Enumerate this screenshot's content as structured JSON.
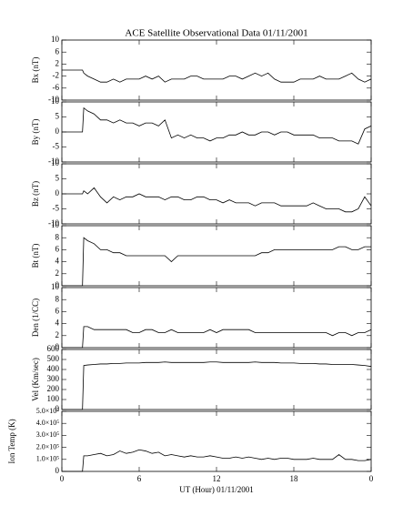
{
  "chart_data": [
    {
      "type": "line",
      "title": "ACE Satellite Observational Data   01/11/2001",
      "ylabel": "Bx (nT)",
      "color": "#000000",
      "x": [
        0,
        1.6,
        1.7,
        2,
        2.5,
        3,
        3.5,
        4,
        4.5,
        5,
        5.5,
        6,
        6.5,
        7,
        7.5,
        8,
        8.5,
        9,
        9.5,
        10,
        10.5,
        11,
        11.5,
        12,
        12.5,
        13,
        13.5,
        14,
        14.5,
        15,
        15.5,
        16,
        16.5,
        17,
        17.5,
        18,
        18.5,
        19,
        19.5,
        20,
        20.5,
        21,
        21.5,
        22,
        22.5,
        23,
        23.5,
        24
      ],
      "values": [
        0,
        0,
        -1,
        -2,
        -3,
        -4,
        -4,
        -3,
        -4,
        -3,
        -3,
        -3,
        -2,
        -3,
        -2,
        -4,
        -3,
        -3,
        -3,
        -2,
        -2,
        -3,
        -3,
        -3,
        -3,
        -2,
        -2,
        -3,
        -2,
        -1,
        -2,
        -1,
        -3,
        -4,
        -4,
        -4,
        -3,
        -3,
        -3,
        -2,
        -3,
        -3,
        -3,
        -2,
        -1,
        -3,
        -4,
        -3
      ],
      "xlim": [
        0,
        24
      ],
      "xticks": [
        0,
        6,
        12,
        18,
        {
          "value": 24,
          "label": "0"
        }
      ],
      "ylim": [
        -10,
        10
      ],
      "yticks": [
        -10,
        -6,
        -2,
        2,
        6,
        10
      ]
    },
    {
      "type": "line",
      "ylabel": "By (nT)",
      "color": "#000000",
      "x": [
        0,
        1.6,
        1.7,
        2,
        2.5,
        3,
        3.5,
        4,
        4.5,
        5,
        5.5,
        6,
        6.5,
        7,
        7.5,
        8,
        8.5,
        9,
        9.5,
        10,
        10.5,
        11,
        11.5,
        12,
        12.5,
        13,
        13.5,
        14,
        14.5,
        15,
        15.5,
        16,
        16.5,
        17,
        17.5,
        18,
        18.5,
        19,
        19.5,
        20,
        20.5,
        21,
        21.5,
        22,
        22.5,
        23,
        23.5,
        24
      ],
      "values": [
        0,
        0,
        8,
        7,
        6,
        4,
        4,
        3,
        4,
        3,
        3,
        2,
        3,
        3,
        2,
        4,
        -2,
        -1,
        -2,
        -1,
        -2,
        -2,
        -3,
        -2,
        -2,
        -1,
        -1,
        0,
        -1,
        -1,
        0,
        0,
        -1,
        0,
        0,
        -1,
        -1,
        -1,
        -1,
        -2,
        -2,
        -2,
        -3,
        -3,
        -3,
        -4,
        1,
        2
      ],
      "xlim": [
        0,
        24
      ],
      "xticks": [
        0,
        6,
        12,
        18,
        {
          "value": 24,
          "label": "0"
        }
      ],
      "ylim": [
        -10,
        10
      ],
      "yticks": [
        -10,
        -5,
        0,
        5,
        10
      ]
    },
    {
      "type": "line",
      "ylabel": "Bz (nT)",
      "color": "#000000",
      "x": [
        0,
        1.6,
        1.7,
        2,
        2.5,
        3,
        3.5,
        4,
        4.5,
        5,
        5.5,
        6,
        6.5,
        7,
        7.5,
        8,
        8.5,
        9,
        9.5,
        10,
        10.5,
        11,
        11.5,
        12,
        12.5,
        13,
        13.5,
        14,
        14.5,
        15,
        15.5,
        16,
        16.5,
        17,
        17.5,
        18,
        18.5,
        19,
        19.5,
        20,
        20.5,
        21,
        21.5,
        22,
        22.5,
        23,
        23.5,
        24
      ],
      "values": [
        0,
        0,
        1,
        0,
        2,
        -1,
        -3,
        -1,
        -2,
        -1,
        -1,
        0,
        -1,
        -1,
        -1,
        -2,
        -1,
        -1,
        -2,
        -2,
        -1,
        -1,
        -2,
        -2,
        -3,
        -2,
        -3,
        -3,
        -3,
        -4,
        -3,
        -3,
        -3,
        -4,
        -4,
        -4,
        -4,
        -4,
        -3,
        -4,
        -5,
        -5,
        -5,
        -6,
        -6,
        -5,
        -1,
        -4
      ],
      "xlim": [
        0,
        24
      ],
      "xticks": [
        0,
        6,
        12,
        18,
        {
          "value": 24,
          "label": "0"
        }
      ],
      "ylim": [
        -10,
        10
      ],
      "yticks": [
        -10,
        -5,
        0,
        5,
        10
      ]
    },
    {
      "type": "line",
      "ylabel": "Bt (nT)",
      "color": "#000000",
      "x": [
        0,
        1.6,
        1.7,
        2,
        2.5,
        3,
        3.5,
        4,
        4.5,
        5,
        5.5,
        6,
        6.5,
        7,
        7.5,
        8,
        8.5,
        9,
        9.5,
        10,
        10.5,
        11,
        11.5,
        12,
        12.5,
        13,
        13.5,
        14,
        14.5,
        15,
        15.5,
        16,
        16.5,
        17,
        17.5,
        18,
        18.5,
        19,
        19.5,
        20,
        20.5,
        21,
        21.5,
        22,
        22.5,
        23,
        23.5,
        24
      ],
      "values": [
        0,
        0,
        8,
        7.5,
        7,
        6,
        6,
        5.5,
        5.5,
        5,
        5,
        5,
        5,
        5,
        5,
        5,
        4,
        5,
        5,
        5,
        5,
        5,
        5,
        5,
        5,
        5,
        5,
        5,
        5,
        5,
        5.5,
        5.5,
        6,
        6,
        6,
        6,
        6,
        6,
        6,
        6,
        6,
        6,
        6.5,
        6.5,
        6,
        6,
        6.5,
        6.5
      ],
      "xlim": [
        0,
        24
      ],
      "xticks": [
        0,
        6,
        12,
        18,
        {
          "value": 24,
          "label": "0"
        }
      ],
      "ylim": [
        0,
        10
      ],
      "yticks": [
        0,
        2,
        4,
        6,
        8,
        10
      ]
    },
    {
      "type": "line",
      "ylabel": "Den (1/CC)",
      "color": "#000000",
      "x": [
        0,
        1.6,
        1.7,
        2,
        2.5,
        3,
        3.5,
        4,
        4.5,
        5,
        5.5,
        6,
        6.5,
        7,
        7.5,
        8,
        8.5,
        9,
        9.5,
        10,
        10.5,
        11,
        11.5,
        12,
        12.5,
        13,
        13.5,
        14,
        14.5,
        15,
        15.5,
        16,
        16.5,
        17,
        17.5,
        18,
        18.5,
        19,
        19.5,
        20,
        20.5,
        21,
        21.5,
        22,
        22.5,
        23,
        23.5,
        24
      ],
      "values": [
        0,
        0,
        3.5,
        3.5,
        3,
        3,
        3,
        3,
        3,
        3,
        2.5,
        2.5,
        3,
        3,
        2.5,
        2.5,
        3,
        2.5,
        2.5,
        2.5,
        2.5,
        2.5,
        3,
        2.5,
        3,
        3,
        3,
        3,
        3,
        2.5,
        2.5,
        2.5,
        2.5,
        2.5,
        2.5,
        2.5,
        2.5,
        2.5,
        2.5,
        2.5,
        2.5,
        2,
        2.5,
        2.5,
        2,
        2.5,
        2.5,
        3
      ],
      "xlim": [
        0,
        24
      ],
      "xticks": [
        0,
        6,
        12,
        18,
        {
          "value": 24,
          "label": "0"
        }
      ],
      "ylim": [
        0,
        10
      ],
      "yticks": [
        0,
        2,
        4,
        6,
        8,
        10
      ]
    },
    {
      "type": "line",
      "ylabel": "Vel (Km/sec)",
      "color": "#000000",
      "x": [
        0,
        1.6,
        1.7,
        2,
        2.5,
        3,
        3.5,
        4,
        4.5,
        5,
        5.5,
        6,
        6.5,
        7,
        7.5,
        8,
        8.5,
        9,
        9.5,
        10,
        10.5,
        11,
        11.5,
        12,
        12.5,
        13,
        13.5,
        14,
        14.5,
        15,
        15.5,
        16,
        16.5,
        17,
        17.5,
        18,
        18.5,
        19,
        19.5,
        20,
        20.5,
        21,
        21.5,
        22,
        22.5,
        23,
        23.5,
        24
      ],
      "values": [
        0,
        0,
        440,
        445,
        450,
        455,
        455,
        460,
        460,
        465,
        465,
        465,
        470,
        470,
        470,
        475,
        470,
        470,
        470,
        470,
        470,
        470,
        475,
        475,
        470,
        470,
        470,
        470,
        470,
        475,
        470,
        470,
        470,
        465,
        465,
        465,
        460,
        460,
        460,
        455,
        455,
        450,
        450,
        450,
        450,
        445,
        440,
        430
      ],
      "xlim": [
        0,
        24
      ],
      "xticks": [
        0,
        6,
        12,
        18,
        {
          "value": 24,
          "label": "0"
        }
      ],
      "ylim": [
        0,
        600
      ],
      "yticks": [
        0,
        100,
        200,
        300,
        400,
        500,
        600
      ]
    },
    {
      "type": "line",
      "ylabel": "Ion Temp (K)",
      "xlabel": "UT (Hour)  01/11/2001",
      "color": "#000000",
      "x": [
        0,
        1.6,
        1.7,
        2,
        2.5,
        3,
        3.5,
        4,
        4.5,
        5,
        5.5,
        6,
        6.5,
        7,
        7.5,
        8,
        8.5,
        9,
        9.5,
        10,
        10.5,
        11,
        11.5,
        12,
        12.5,
        13,
        13.5,
        14,
        14.5,
        15,
        15.5,
        16,
        16.5,
        17,
        17.5,
        18,
        18.5,
        19,
        19.5,
        20,
        20.5,
        21,
        21.5,
        22,
        22.5,
        23,
        23.5,
        24
      ],
      "values": [
        0,
        0,
        130000,
        130000,
        140000,
        150000,
        130000,
        140000,
        170000,
        150000,
        160000,
        180000,
        170000,
        150000,
        160000,
        130000,
        140000,
        130000,
        120000,
        130000,
        120000,
        120000,
        130000,
        120000,
        110000,
        110000,
        120000,
        110000,
        120000,
        110000,
        100000,
        110000,
        100000,
        110000,
        110000,
        100000,
        100000,
        100000,
        110000,
        100000,
        100000,
        100000,
        140000,
        100000,
        100000,
        90000,
        90000,
        100000
      ],
      "xlim": [
        0,
        24
      ],
      "xticks": [
        0,
        6,
        12,
        18,
        {
          "value": 24,
          "label": "0"
        }
      ],
      "ylim": [
        0,
        500000
      ],
      "yticks": [
        0,
        {
          "value": 100000,
          "label": "1.0×10⁵"
        },
        {
          "value": 200000,
          "label": "2.0×10⁵"
        },
        {
          "value": 300000,
          "label": "3.0×10⁵"
        },
        {
          "value": 400000,
          "label": "4.0×10⁵"
        },
        {
          "value": 500000,
          "label": "5.0×10⁵"
        }
      ]
    }
  ]
}
